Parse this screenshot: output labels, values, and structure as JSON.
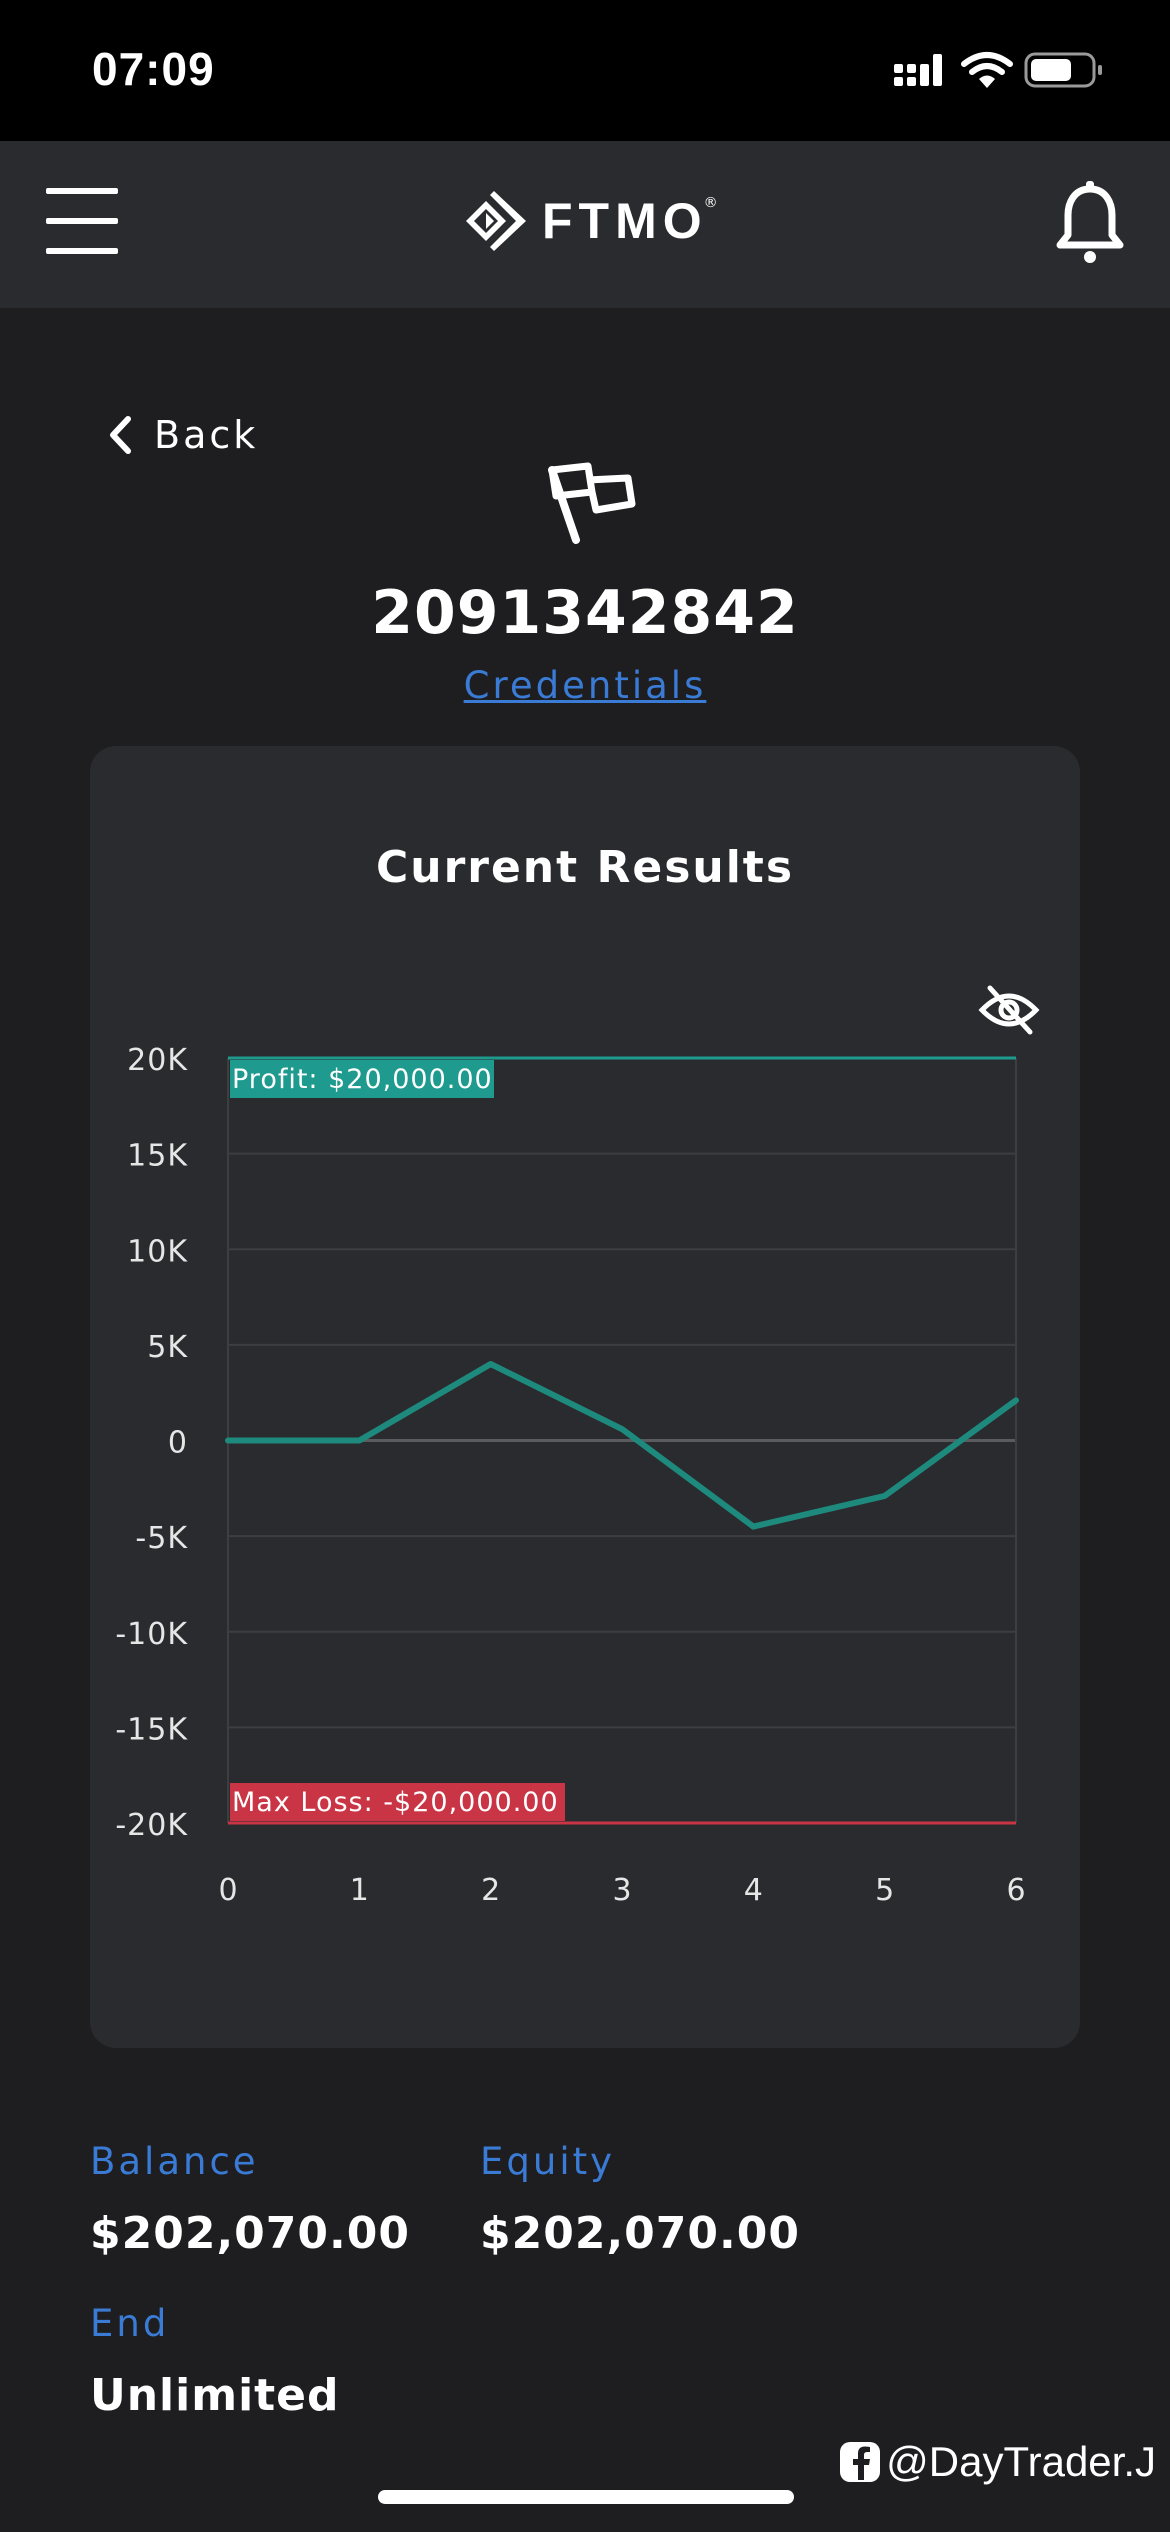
{
  "status_bar": {
    "time": "07:09",
    "icons": [
      "signal-icon",
      "wifi-icon",
      "battery-icon"
    ]
  },
  "header": {
    "logo_text": "FTMO",
    "logo_mark": "®",
    "menu_icon": "hamburger-menu-icon",
    "bell_icon": "bell-icon"
  },
  "nav": {
    "back_label": "Back"
  },
  "account": {
    "icon": "flag-icon",
    "number": "2091342842",
    "credentials_label": "Credentials"
  },
  "card": {
    "title": "Current Results",
    "visibility_icon": "eye-off-icon"
  },
  "chart_data": {
    "type": "line",
    "title": "",
    "xlabel": "",
    "ylabel": "",
    "x": [
      0,
      1,
      2,
      3,
      4,
      5,
      6
    ],
    "x_tick_labels": [
      "0",
      "1",
      "2",
      "3",
      "4",
      "5",
      "6"
    ],
    "y_tick_labels": [
      "20K",
      "15K",
      "10K",
      "5K",
      "0",
      "-5K",
      "-10K",
      "-15K",
      "-20K"
    ],
    "y_ticks": [
      20000,
      15000,
      10000,
      5000,
      0,
      -5000,
      -10000,
      -15000,
      -20000
    ],
    "ylim": [
      -20000,
      20000
    ],
    "xlim": [
      0,
      6
    ],
    "grid": true,
    "series": [
      {
        "values": [
          0,
          0,
          4000,
          600,
          -4500,
          -2900,
          2100
        ],
        "color": "#1e8a7e"
      }
    ],
    "reference_lines": [
      {
        "label": "Profit: $20,000.00",
        "value": 20000,
        "color": "#1e9a8e"
      },
      {
        "label": "Max Loss: -$20,000.00",
        "value": -20000,
        "color": "#c93545"
      }
    ]
  },
  "stats": {
    "balance_label": "Balance",
    "balance_value": "$202,070.00",
    "equity_label": "Equity",
    "equity_value": "$202,070.00",
    "end_label": "End",
    "end_value": "Unlimited"
  },
  "watermark": {
    "text": "@DayTrader.J",
    "icon": "facebook-icon"
  },
  "colors": {
    "background": "#1e1e20",
    "header": "#2a2b2e",
    "card": "#2a2b2e",
    "accent_blue": "#3a7bd5",
    "profit_green": "#1e9a8e",
    "loss_red": "#c93545"
  }
}
